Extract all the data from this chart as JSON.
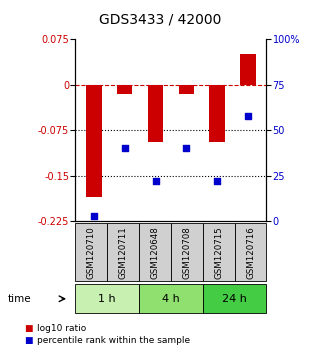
{
  "title": "GDS3433 / 42000",
  "samples": [
    "GSM120710",
    "GSM120711",
    "GSM120648",
    "GSM120708",
    "GSM120715",
    "GSM120716"
  ],
  "log10_ratio": [
    -0.185,
    -0.015,
    -0.095,
    -0.015,
    -0.095,
    0.05
  ],
  "percentile_rank": [
    3,
    40,
    22,
    40,
    22,
    58
  ],
  "ylim_left": [
    -0.225,
    0.075
  ],
  "ylim_right": [
    0,
    100
  ],
  "yticks_left": [
    0.075,
    0,
    -0.075,
    -0.15,
    -0.225
  ],
  "yticks_right": [
    100,
    75,
    50,
    25,
    0
  ],
  "bar_color": "#CC0000",
  "scatter_color": "#0000CC",
  "dashed_line_color": "#CC0000",
  "dotted_line_color": "#000000",
  "group_labels": [
    "1 h",
    "4 h",
    "24 h"
  ],
  "group_ranges": [
    [
      0,
      2
    ],
    [
      2,
      4
    ],
    [
      4,
      6
    ]
  ],
  "group_colors": [
    "#c8f0b0",
    "#90e070",
    "#44cc44"
  ],
  "time_label": "time",
  "legend_bar_label": "log10 ratio",
  "legend_scatter_label": "percentile rank within the sample",
  "title_fontsize": 10,
  "tick_fontsize": 7,
  "label_fontsize": 7,
  "sample_box_color": "#d0d0d0",
  "sample_box_edge": "#000000",
  "bar_width": 0.5
}
